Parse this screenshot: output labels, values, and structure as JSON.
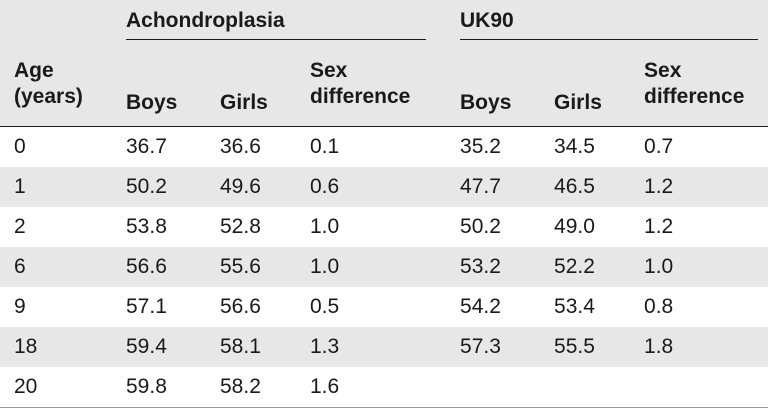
{
  "groups": {
    "group1": "Achondroplasia",
    "group2": "UK90"
  },
  "headers": {
    "age": "Age (years)",
    "boys": "Boys",
    "girls": "Girls",
    "sex_difference": "Sex difference"
  },
  "rows": [
    {
      "age": "0",
      "a_boys": "36.7",
      "a_girls": "36.6",
      "a_diff": "0.1",
      "u_boys": "35.2",
      "u_girls": "34.5",
      "u_diff": "0.7"
    },
    {
      "age": "1",
      "a_boys": "50.2",
      "a_girls": "49.6",
      "a_diff": "0.6",
      "u_boys": "47.7",
      "u_girls": "46.5",
      "u_diff": "1.2"
    },
    {
      "age": "2",
      "a_boys": "53.8",
      "a_girls": "52.8",
      "a_diff": "1.0",
      "u_boys": "50.2",
      "u_girls": "49.0",
      "u_diff": "1.2"
    },
    {
      "age": "6",
      "a_boys": "56.6",
      "a_girls": "55.6",
      "a_diff": "1.0",
      "u_boys": "53.2",
      "u_girls": "52.2",
      "u_diff": "1.0"
    },
    {
      "age": "9",
      "a_boys": "57.1",
      "a_girls": "56.6",
      "a_diff": "0.5",
      "u_boys": "54.2",
      "u_girls": "53.4",
      "u_diff": "0.8"
    },
    {
      "age": "18",
      "a_boys": "59.4",
      "a_girls": "58.1",
      "a_diff": "1.3",
      "u_boys": "57.3",
      "u_girls": "55.5",
      "u_diff": "1.8"
    },
    {
      "age": "20",
      "a_boys": "59.8",
      "a_girls": "58.2",
      "a_diff": "1.6",
      "u_boys": "",
      "u_girls": "",
      "u_diff": ""
    }
  ]
}
